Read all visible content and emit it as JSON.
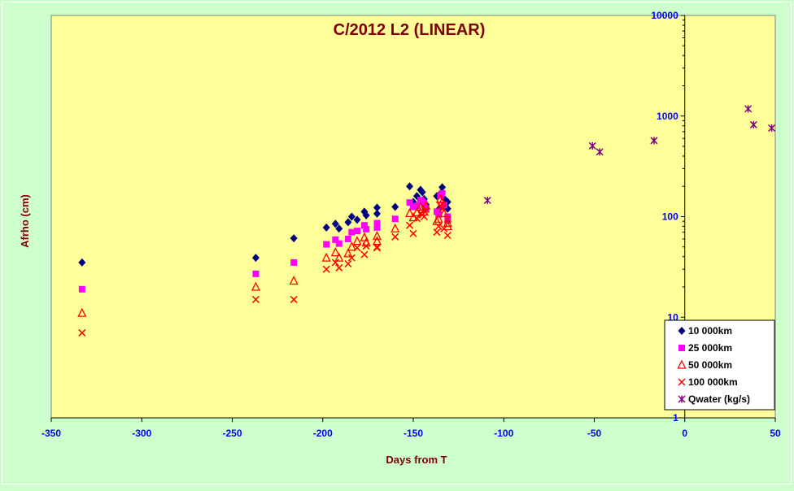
{
  "chart_data": {
    "type": "scatter",
    "title": "C/2012 L2 (LINEAR)",
    "xlabel": "Days from T",
    "ylabel": "Afrho (cm)",
    "xlim": [
      -350,
      50
    ],
    "ylim": [
      1,
      10000
    ],
    "y_scale": "log",
    "x_ticks": [
      -350,
      -300,
      -250,
      -200,
      -150,
      -100,
      -50,
      0,
      50
    ],
    "y_ticks": [
      1,
      10,
      100,
      1000,
      10000
    ],
    "grid": false,
    "legend_position": "bottom-right",
    "colors": {
      "background": "#ccffcc",
      "plot_area": "#ffff99",
      "title": "#800000",
      "axis_title": "#800000",
      "tick_labels": "#0000ff"
    },
    "series": [
      {
        "name": "10 000km",
        "marker": "diamond",
        "color": "#000080",
        "points": [
          [
            -333,
            35
          ],
          [
            -237,
            39
          ],
          [
            -216,
            61
          ],
          [
            -198,
            78
          ],
          [
            -193,
            85
          ],
          [
            -191,
            76
          ],
          [
            -186,
            88
          ],
          [
            -184,
            100
          ],
          [
            -181,
            93
          ],
          [
            -177,
            112
          ],
          [
            -176,
            103
          ],
          [
            -170,
            123
          ],
          [
            -170,
            107
          ],
          [
            -160,
            125
          ],
          [
            -152,
            200
          ],
          [
            -150,
            140
          ],
          [
            -148,
            160
          ],
          [
            -146,
            185
          ],
          [
            -145,
            175
          ],
          [
            -144,
            150
          ],
          [
            -143,
            132
          ],
          [
            -137,
            160
          ],
          [
            -136,
            118
          ],
          [
            -135,
            170
          ],
          [
            -134,
            196
          ],
          [
            -133,
            152
          ],
          [
            -131,
            140
          ],
          [
            -131,
            120
          ]
        ]
      },
      {
        "name": "25 000km",
        "marker": "square",
        "color": "#ff00ff",
        "points": [
          [
            -333,
            19
          ],
          [
            -237,
            27
          ],
          [
            -216,
            35
          ],
          [
            -198,
            53
          ],
          [
            -193,
            59
          ],
          [
            -191,
            54
          ],
          [
            -186,
            60
          ],
          [
            -184,
            70
          ],
          [
            -181,
            72
          ],
          [
            -177,
            82
          ],
          [
            -176,
            75
          ],
          [
            -170,
            86
          ],
          [
            -170,
            78
          ],
          [
            -160,
            95
          ],
          [
            -152,
            138
          ],
          [
            -150,
            125
          ],
          [
            -148,
            128
          ],
          [
            -146,
            146
          ],
          [
            -145,
            140
          ],
          [
            -144,
            135
          ],
          [
            -143,
            120
          ],
          [
            -137,
            112
          ],
          [
            -136,
            105
          ],
          [
            -135,
            162
          ],
          [
            -134,
            170
          ],
          [
            -133,
            130
          ],
          [
            -131,
            100
          ],
          [
            -131,
            92
          ]
        ]
      },
      {
        "name": "50 000km",
        "marker": "triangle",
        "color": "#ff0000",
        "points": [
          [
            -333,
            11
          ],
          [
            -237,
            20
          ],
          [
            -216,
            23
          ],
          [
            -198,
            39
          ],
          [
            -193,
            44
          ],
          [
            -191,
            39
          ],
          [
            -186,
            43
          ],
          [
            -184,
            50
          ],
          [
            -181,
            57
          ],
          [
            -177,
            62
          ],
          [
            -176,
            55
          ],
          [
            -170,
            64
          ],
          [
            -170,
            57
          ],
          [
            -160,
            76
          ],
          [
            -152,
            108
          ],
          [
            -150,
            98
          ],
          [
            -148,
            110
          ],
          [
            -146,
            125
          ],
          [
            -145,
            118
          ],
          [
            -144,
            112
          ],
          [
            -143,
            128
          ],
          [
            -137,
            90
          ],
          [
            -136,
            95
          ],
          [
            -135,
            150
          ],
          [
            -134,
            140
          ],
          [
            -133,
            108
          ],
          [
            -131,
            86
          ],
          [
            -131,
            80
          ]
        ]
      },
      {
        "name": "100 000km",
        "marker": "x",
        "color": "#ff0000",
        "points": [
          [
            -333,
            7
          ],
          [
            -237,
            15
          ],
          [
            -216,
            15
          ],
          [
            -198,
            30
          ],
          [
            -193,
            35
          ],
          [
            -191,
            31
          ],
          [
            -186,
            34
          ],
          [
            -184,
            39
          ],
          [
            -181,
            49
          ],
          [
            -177,
            42
          ],
          [
            -176,
            51
          ],
          [
            -170,
            49
          ],
          [
            -170,
            50
          ],
          [
            -160,
            63
          ],
          [
            -152,
            82
          ],
          [
            -150,
            68
          ],
          [
            -148,
            96
          ],
          [
            -146,
            108
          ],
          [
            -145,
            104
          ],
          [
            -144,
            100
          ],
          [
            -143,
            118
          ],
          [
            -137,
            70
          ],
          [
            -136,
            80
          ],
          [
            -135,
            128
          ],
          [
            -134,
            120
          ],
          [
            -133,
            76
          ],
          [
            -131,
            95
          ],
          [
            -131,
            65
          ]
        ]
      },
      {
        "name": "Qwater (kg/s)",
        "marker": "star",
        "color": "#800080",
        "points": [
          [
            -109,
            145
          ],
          [
            -51,
            505
          ],
          [
            -47,
            440
          ],
          [
            -17,
            570
          ],
          [
            35,
            1180
          ],
          [
            38,
            820
          ],
          [
            48,
            760
          ]
        ]
      }
    ]
  }
}
